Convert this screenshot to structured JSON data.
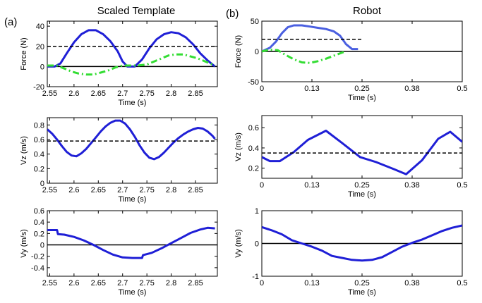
{
  "figure": {
    "panel_a_label": "(a)",
    "panel_b_label": "(b)",
    "panel_a_title": "Scaled Template",
    "panel_b_title": "Robot"
  },
  "colors": {
    "primary": "#1f1fd6",
    "secondary": "#33dd33",
    "reference": "#000000"
  },
  "chart_data": [
    {
      "id": "a-force",
      "type": "line",
      "xlabel": "Time (s)",
      "ylabel": "Force (N)",
      "xlim": [
        2.545,
        2.895
      ],
      "ylim": [
        -20,
        45
      ],
      "xticks": [
        2.55,
        2.6,
        2.65,
        2.7,
        2.75,
        2.8,
        2.85
      ],
      "xtick_labels": [
        "2.55",
        "2.6",
        "2.65",
        "2.7",
        "2.75",
        "2.8",
        "2.85"
      ],
      "yticks": [
        -20,
        0,
        20,
        40
      ],
      "ytick_labels": [
        "-20",
        "0",
        "20",
        "40"
      ],
      "zero_line": true,
      "series": [
        {
          "style": "solid",
          "color": "#1f1fd6",
          "width": 3,
          "x": [
            2.545,
            2.56,
            2.572,
            2.585,
            2.6,
            2.615,
            2.63,
            2.645,
            2.66,
            2.675,
            2.69,
            2.7,
            2.71,
            2.725,
            2.74,
            2.755,
            2.77,
            2.785,
            2.8,
            2.815,
            2.83,
            2.845,
            2.86,
            2.875,
            2.89
          ],
          "y": [
            0,
            0,
            3,
            13,
            24,
            32,
            36,
            36,
            32,
            25,
            15,
            5,
            0,
            0,
            7,
            18,
            27,
            32,
            34,
            33,
            29,
            22,
            13,
            6,
            0
          ]
        },
        {
          "style": "dashdot",
          "color": "#33dd33",
          "width": 3,
          "x": [
            2.545,
            2.565,
            2.58,
            2.595,
            2.61,
            2.625,
            2.64,
            2.655,
            2.67,
            2.685,
            2.7,
            2.715,
            2.73,
            2.75,
            2.765,
            2.78,
            2.795,
            2.81,
            2.825,
            2.84,
            2.855,
            2.87,
            2.89
          ],
          "y": [
            1,
            1,
            -2,
            -5,
            -7,
            -8,
            -8,
            -6,
            -4,
            -1,
            1,
            1,
            1,
            2,
            5,
            8,
            11,
            12,
            12,
            10,
            8,
            5,
            1
          ]
        },
        {
          "style": "dashed",
          "color": "#000000",
          "width": 1.5,
          "x": [
            2.545,
            2.895
          ],
          "y": [
            20,
            20
          ]
        }
      ]
    },
    {
      "id": "a-vz",
      "type": "line",
      "xlabel": "Time (s)",
      "ylabel": "Vz (m/s)",
      "xlim": [
        2.545,
        2.895
      ],
      "ylim": [
        0,
        0.9
      ],
      "xticks": [
        2.55,
        2.6,
        2.65,
        2.7,
        2.75,
        2.8,
        2.85
      ],
      "xtick_labels": [
        "2.55",
        "2.6",
        "2.65",
        "2.7",
        "2.75",
        "2.8",
        "2.85"
      ],
      "yticks": [
        0,
        0.2,
        0.4,
        0.6,
        0.8
      ],
      "ytick_labels": [
        "0",
        "0.2",
        "0.4",
        "0.6",
        "0.8"
      ],
      "zero_line": false,
      "series": [
        {
          "style": "solid",
          "color": "#1f1fd6",
          "width": 3,
          "x": [
            2.545,
            2.555,
            2.565,
            2.575,
            2.585,
            2.595,
            2.605,
            2.615,
            2.625,
            2.635,
            2.645,
            2.655,
            2.665,
            2.675,
            2.685,
            2.695,
            2.705,
            2.715,
            2.725,
            2.735,
            2.745,
            2.755,
            2.765,
            2.775,
            2.785,
            2.795,
            2.805,
            2.815,
            2.825,
            2.835,
            2.845,
            2.855,
            2.865,
            2.875,
            2.885,
            2.89
          ],
          "y": [
            0.74,
            0.68,
            0.6,
            0.51,
            0.43,
            0.38,
            0.37,
            0.41,
            0.47,
            0.55,
            0.63,
            0.71,
            0.78,
            0.83,
            0.86,
            0.86,
            0.82,
            0.74,
            0.64,
            0.52,
            0.42,
            0.35,
            0.33,
            0.36,
            0.42,
            0.49,
            0.56,
            0.62,
            0.67,
            0.71,
            0.74,
            0.76,
            0.75,
            0.71,
            0.65,
            0.61
          ]
        },
        {
          "style": "dashed",
          "color": "#000000",
          "width": 1.5,
          "x": [
            2.545,
            2.895
          ],
          "y": [
            0.58,
            0.58
          ]
        }
      ]
    },
    {
      "id": "a-vy",
      "type": "line",
      "xlabel": "Time (s)",
      "ylabel": "Vy (m/s)",
      "xlim": [
        2.545,
        2.895
      ],
      "ylim": [
        -0.55,
        0.6
      ],
      "xticks": [
        2.55,
        2.6,
        2.65,
        2.7,
        2.75,
        2.8,
        2.85
      ],
      "xtick_labels": [
        "2.55",
        "2.6",
        "2.65",
        "2.7",
        "2.75",
        "2.8",
        "2.85"
      ],
      "yticks": [
        -0.4,
        -0.2,
        0,
        0.2,
        0.4,
        0.6
      ],
      "ytick_labels": [
        "-0.4",
        "-0.2",
        "0",
        "0.2",
        "0.4",
        "0.6"
      ],
      "zero_line": true,
      "series": [
        {
          "style": "solid",
          "color": "#1f1fd6",
          "width": 3,
          "x": [
            2.545,
            2.56,
            2.565,
            2.567,
            2.58,
            2.6,
            2.62,
            2.64,
            2.66,
            2.68,
            2.7,
            2.72,
            2.735,
            2.74,
            2.742,
            2.76,
            2.78,
            2.8,
            2.82,
            2.84,
            2.86,
            2.875,
            2.89
          ],
          "y": [
            0.26,
            0.26,
            0.26,
            0.19,
            0.18,
            0.14,
            0.08,
            0.0,
            -0.09,
            -0.17,
            -0.22,
            -0.23,
            -0.23,
            -0.23,
            -0.18,
            -0.14,
            -0.06,
            0.03,
            0.12,
            0.21,
            0.27,
            0.3,
            0.29
          ]
        }
      ]
    },
    {
      "id": "b-force",
      "type": "line",
      "xlabel": "Time (s)",
      "ylabel": "Force (N)",
      "xlim": [
        0,
        0.5
      ],
      "ylim": [
        -50,
        50
      ],
      "xticks": [
        0,
        0.125,
        0.25,
        0.375,
        0.5
      ],
      "xtick_labels": [
        "0",
        "0.13",
        "0.25",
        "0.38",
        "0.5"
      ],
      "yticks": [
        -50,
        0,
        50
      ],
      "ytick_labels": [
        "-50",
        "0",
        "50"
      ],
      "zero_line": true,
      "series": [
        {
          "style": "solid",
          "color": "#4a5fe0",
          "width": 3,
          "x": [
            0,
            0.02,
            0.035,
            0.05,
            0.065,
            0.08,
            0.1,
            0.12,
            0.14,
            0.16,
            0.18,
            0.195,
            0.21,
            0.225,
            0.24
          ],
          "y": [
            0,
            6,
            16,
            30,
            40,
            43,
            43,
            41,
            39,
            37,
            33,
            26,
            12,
            4,
            4
          ]
        },
        {
          "style": "dashdot",
          "color": "#33dd33",
          "width": 3,
          "x": [
            0,
            0.02,
            0.04,
            0.06,
            0.08,
            0.1,
            0.12,
            0.14,
            0.16,
            0.18,
            0.2,
            0.21
          ],
          "y": [
            0,
            3,
            2,
            -6,
            -13,
            -18,
            -19,
            -16,
            -12,
            -7,
            -2,
            0
          ]
        },
        {
          "style": "dashed",
          "color": "#000000",
          "width": 1.5,
          "x": [
            0,
            0.25
          ],
          "y": [
            20,
            20
          ]
        }
      ]
    },
    {
      "id": "b-vz",
      "type": "line",
      "xlabel": "Time (s)",
      "ylabel": "Vz (m/s)",
      "xlim": [
        0,
        0.5
      ],
      "ylim": [
        0.1,
        0.72
      ],
      "xticks": [
        0,
        0.125,
        0.25,
        0.375,
        0.5
      ],
      "xtick_labels": [
        "0",
        "0.13",
        "0.25",
        "0.38",
        "0.5"
      ],
      "yticks": [
        0.2,
        0.4,
        0.6
      ],
      "ytick_labels": [
        "0.2",
        "0.4",
        "0.6"
      ],
      "zero_line": false,
      "series": [
        {
          "style": "solid",
          "color": "#1f1fd6",
          "width": 3,
          "x": [
            0,
            0.02,
            0.045,
            0.08,
            0.115,
            0.16,
            0.2,
            0.245,
            0.285,
            0.33,
            0.36,
            0.4,
            0.44,
            0.47,
            0.5
          ],
          "y": [
            0.31,
            0.27,
            0.27,
            0.36,
            0.48,
            0.57,
            0.45,
            0.31,
            0.26,
            0.19,
            0.14,
            0.28,
            0.49,
            0.56,
            0.46
          ]
        },
        {
          "style": "dashed",
          "color": "#000000",
          "width": 1.5,
          "x": [
            0,
            0.5
          ],
          "y": [
            0.35,
            0.35
          ]
        }
      ]
    },
    {
      "id": "b-vy",
      "type": "line",
      "xlabel": "Time (s)",
      "ylabel": "Vy (m/s)",
      "xlim": [
        0,
        0.5
      ],
      "ylim": [
        -1,
        1
      ],
      "xticks": [
        0,
        0.125,
        0.25,
        0.375,
        0.5
      ],
      "xtick_labels": [
        "0",
        "0.13",
        "0.25",
        "0.38",
        "0.5"
      ],
      "yticks": [
        -1,
        0,
        1
      ],
      "ytick_labels": [
        "-1",
        "0",
        "1"
      ],
      "zero_line": true,
      "series": [
        {
          "style": "solid",
          "color": "#1f1fd6",
          "width": 3,
          "x": [
            0,
            0.025,
            0.05,
            0.075,
            0.1,
            0.125,
            0.15,
            0.175,
            0.2,
            0.225,
            0.25,
            0.275,
            0.3,
            0.325,
            0.35,
            0.375,
            0.4,
            0.425,
            0.45,
            0.475,
            0.5
          ],
          "y": [
            0.5,
            0.4,
            0.28,
            0.1,
            0.0,
            -0.1,
            -0.22,
            -0.38,
            -0.44,
            -0.5,
            -0.52,
            -0.5,
            -0.42,
            -0.26,
            -0.1,
            0.02,
            0.12,
            0.25,
            0.38,
            0.48,
            0.55
          ]
        }
      ]
    }
  ]
}
